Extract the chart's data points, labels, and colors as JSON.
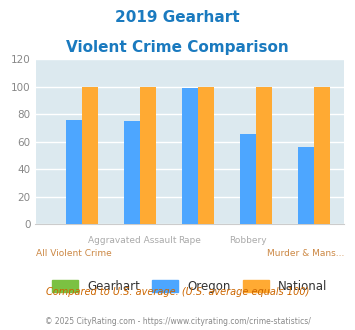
{
  "title_line1": "2019 Gearhart",
  "title_line2": "Violent Crime Comparison",
  "categories": [
    "All Violent Crime",
    "Aggravated Assault",
    "Rape",
    "Robbery",
    "Murder & Mans..."
  ],
  "gearhart": [
    0,
    0,
    0,
    0,
    0
  ],
  "oregon": [
    76,
    75,
    99,
    66,
    56
  ],
  "national": [
    100,
    100,
    100,
    100,
    100
  ],
  "colors": {
    "gearhart": "#7bc142",
    "oregon": "#4da6ff",
    "national": "#ffaa33"
  },
  "ylim": [
    0,
    120
  ],
  "yticks": [
    0,
    20,
    40,
    60,
    80,
    100,
    120
  ],
  "bg_color": "#dce9ef",
  "grid_color": "#ffffff",
  "title_color": "#1a7abf",
  "xlabel_color_top": "#aaaaaa",
  "xlabel_color_bot": "#cc8844",
  "footer_note": "Compared to U.S. average. (U.S. average equals 100)",
  "copyright": "© 2025 CityRating.com - https://www.cityrating.com/crime-statistics/",
  "legend_labels": [
    "Gearhart",
    "Oregon",
    "National"
  ]
}
